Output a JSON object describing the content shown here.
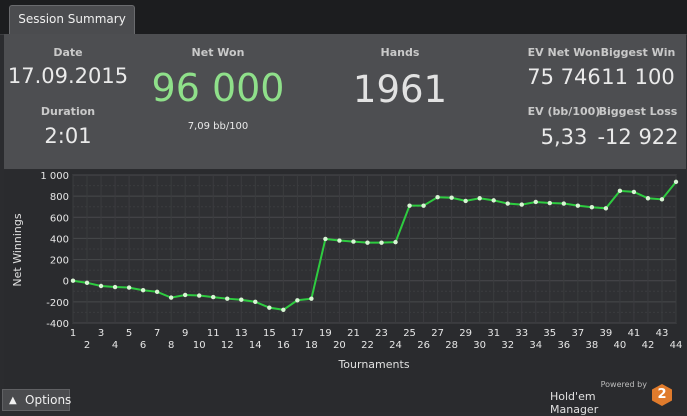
{
  "tab": {
    "label": "Session Summary"
  },
  "summary": {
    "date": {
      "label": "Date",
      "value": "17.09.2015"
    },
    "duration": {
      "label": "Duration",
      "value": "2:01"
    },
    "net_won": {
      "label": "Net Won",
      "value": "96 000",
      "sub": "7,09 bb/100",
      "color": "#8fe08a"
    },
    "hands": {
      "label": "Hands",
      "value": "1961"
    },
    "ev_net_won": {
      "label": "EV Net Won",
      "value": "75 746"
    },
    "biggest_win": {
      "label": "Biggest Win",
      "value": "11 100"
    },
    "ev_bb": {
      "label": "EV (bb/100)",
      "value": "5,33"
    },
    "biggest_loss": {
      "label": "Biggest Loss",
      "value": "-12 922"
    }
  },
  "chart_data": {
    "type": "line",
    "xlabel": "Tournaments",
    "ylabel": "Net Winnings",
    "x": [
      1,
      2,
      3,
      4,
      5,
      6,
      7,
      8,
      9,
      10,
      11,
      12,
      13,
      14,
      15,
      16,
      17,
      18,
      19,
      20,
      21,
      22,
      23,
      24,
      25,
      26,
      27,
      28,
      29,
      30,
      31,
      32,
      33,
      34,
      35,
      36,
      37,
      38,
      39,
      40,
      41,
      42,
      43,
      44
    ],
    "series": [
      {
        "values": [
          0,
          -20,
          -50,
          -60,
          -65,
          -90,
          -105,
          -160,
          -135,
          -140,
          -155,
          -170,
          -180,
          -200,
          -255,
          -275,
          -185,
          -170,
          395,
          380,
          370,
          360,
          360,
          365,
          710,
          710,
          790,
          785,
          755,
          780,
          760,
          730,
          720,
          745,
          735,
          730,
          710,
          695,
          685,
          850,
          840,
          780,
          770,
          935
        ],
        "color": "#2ecc40"
      }
    ],
    "ylim": [
      -400,
      1000
    ],
    "yticks": [
      "1 000",
      "800",
      "600",
      "400",
      "200",
      "0",
      "-200",
      "-400"
    ],
    "ytick_values": [
      1000,
      800,
      600,
      400,
      200,
      0,
      -200,
      -400
    ],
    "grid": true
  },
  "options": {
    "label": "Options"
  },
  "brand": {
    "powered": "Powered by",
    "name": "Hold'em Manager",
    "logo_number": "2"
  }
}
